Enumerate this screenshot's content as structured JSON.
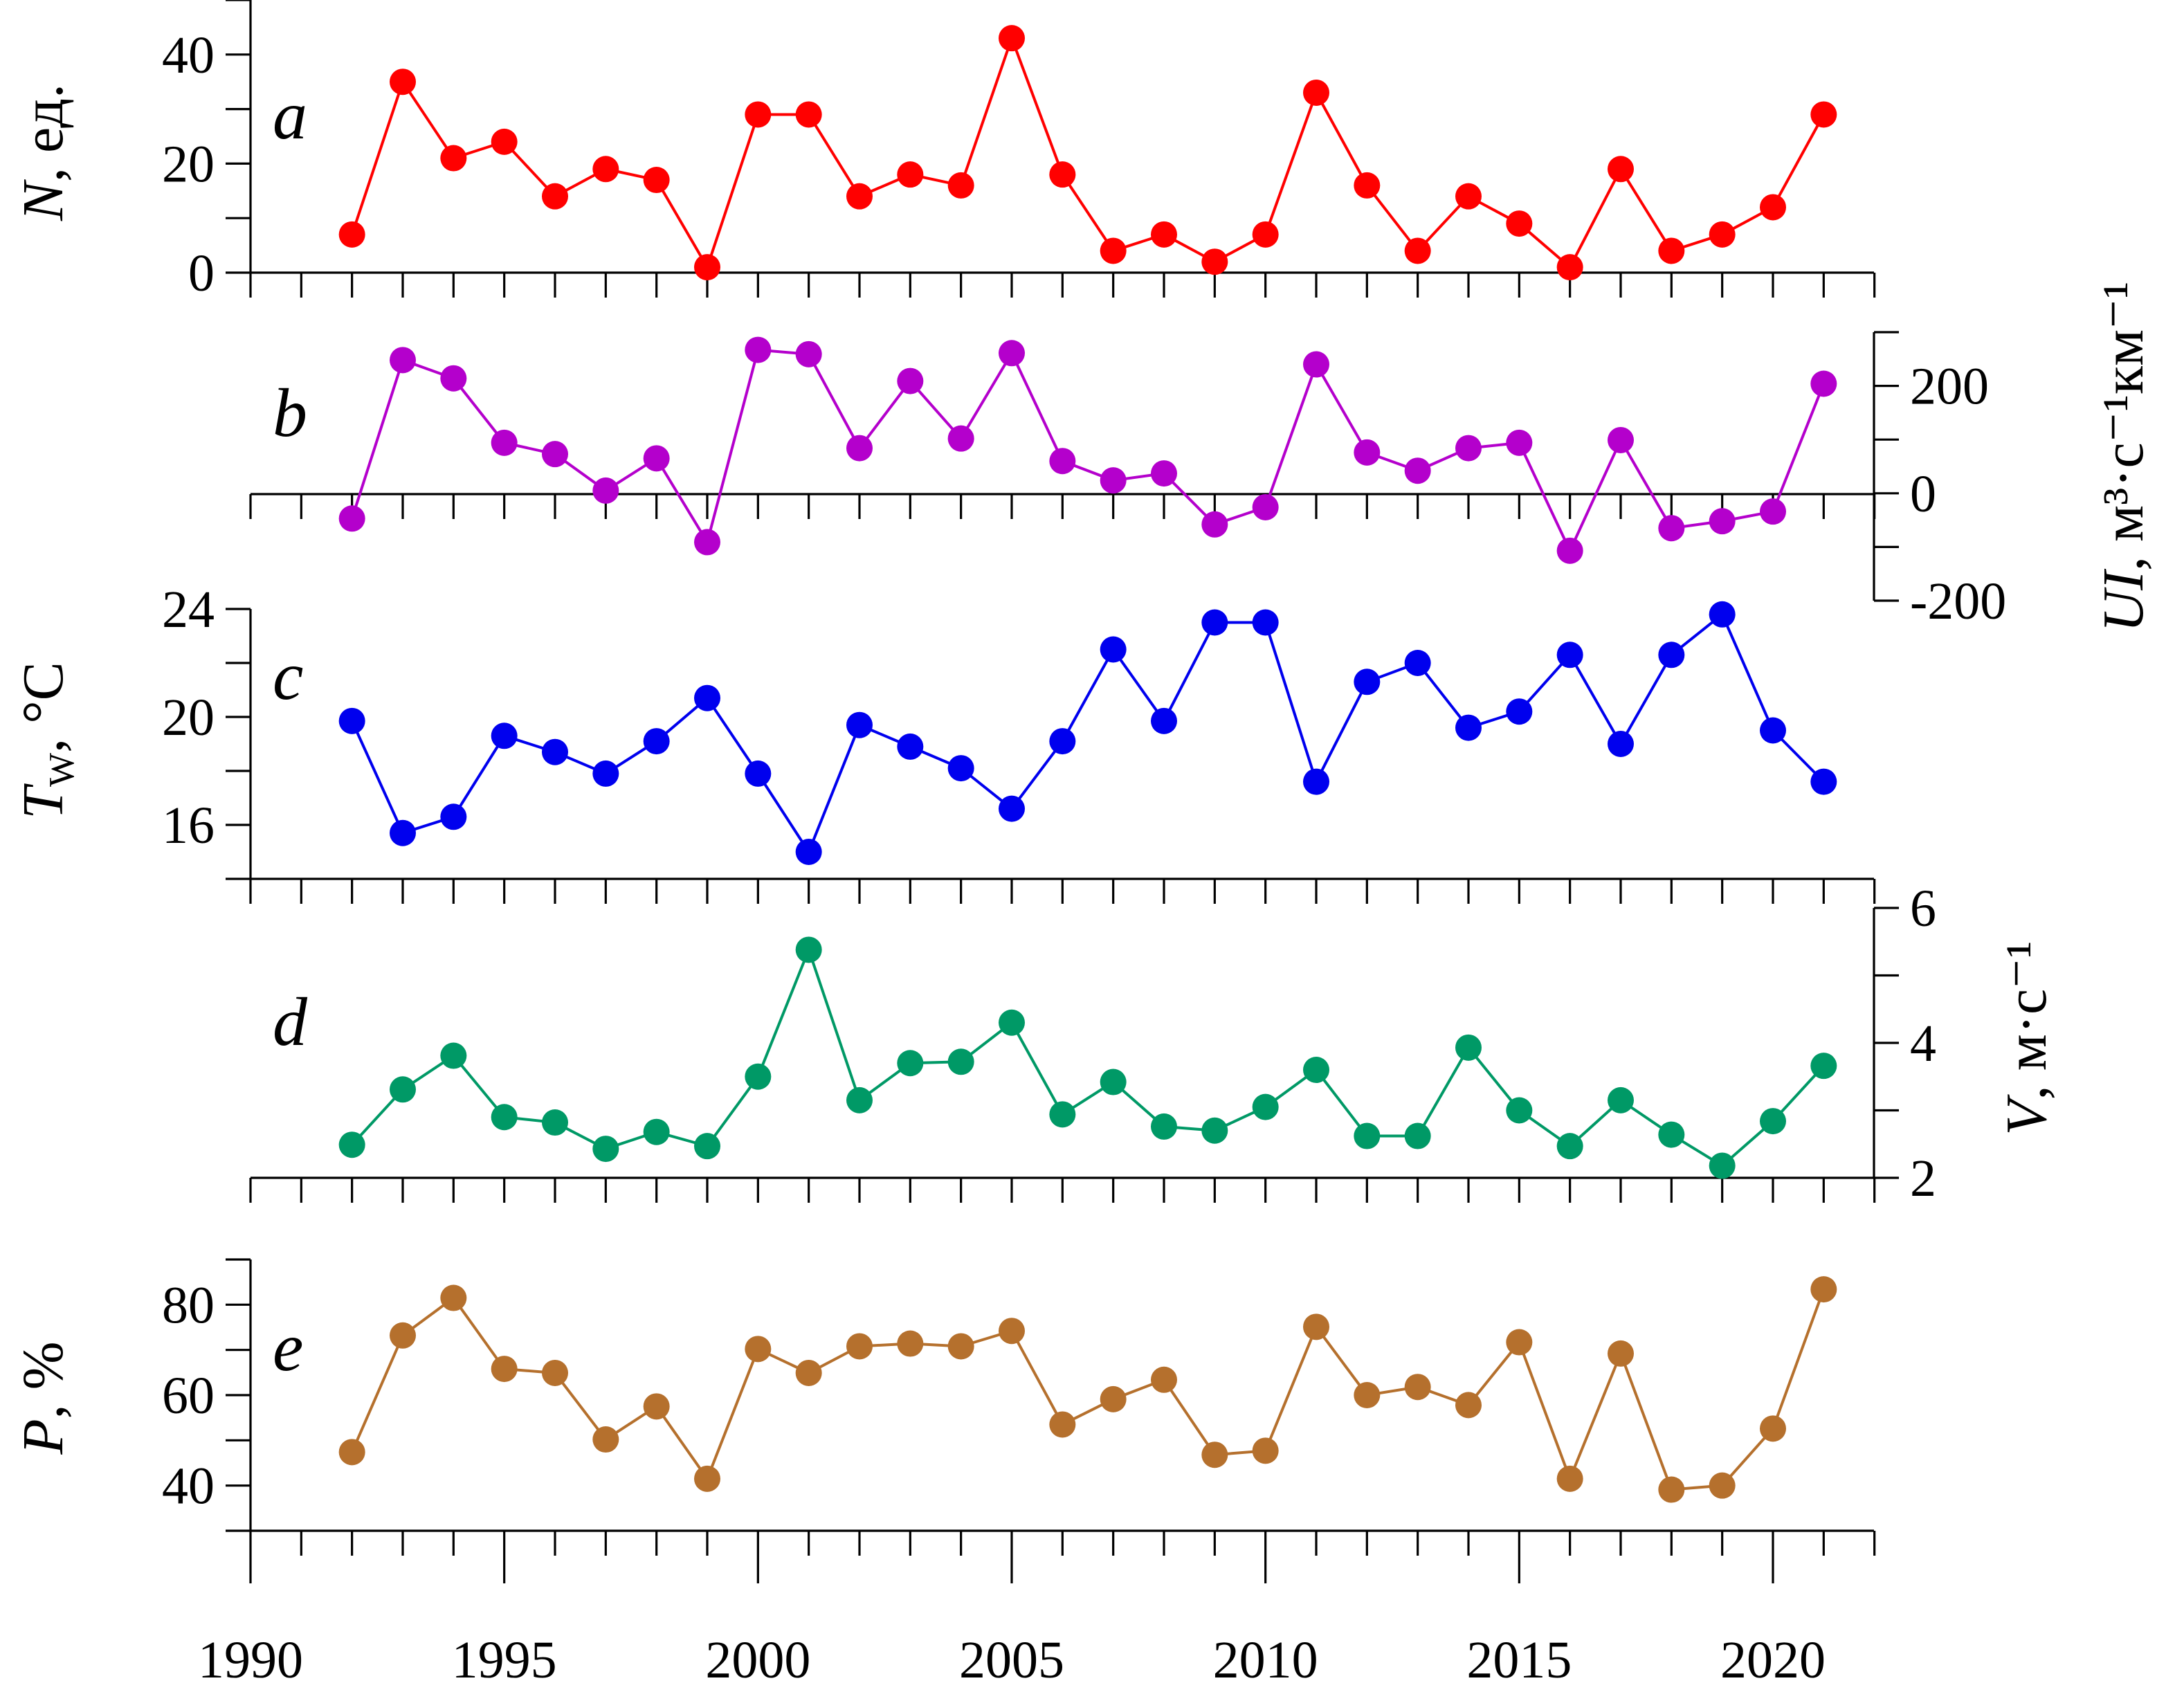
{
  "chart_data": [
    {
      "type": "line",
      "letter": "a",
      "ylabel": {
        "var": "N",
        "sub": "",
        "unit": ", ед."
      },
      "color": "#ff0000",
      "ylim": [
        0,
        50
      ],
      "yticks": [
        0,
        20,
        40
      ],
      "ytick_labels": [
        "0",
        "20",
        "40"
      ],
      "minor_step": 10,
      "axis_side": "left",
      "x": [
        1992,
        1993,
        1994,
        1995,
        1996,
        1997,
        1998,
        1999,
        2000,
        2001,
        2002,
        2003,
        2004,
        2005,
        2006,
        2007,
        2008,
        2009,
        2010,
        2011,
        2012,
        2013,
        2014,
        2015,
        2016,
        2017,
        2018,
        2019,
        2020,
        2021
      ],
      "values": [
        7,
        35,
        21,
        24,
        14,
        19,
        17,
        1,
        29,
        29,
        14,
        18,
        16,
        43,
        18,
        4,
        7,
        2,
        7,
        33,
        16,
        4,
        14,
        9,
        1,
        19,
        4,
        7,
        12,
        29
      ]
    },
    {
      "type": "line",
      "letter": "b",
      "ylabel": {
        "var": "UI",
        "sub": "",
        "unit": ", м³·с⁻¹км⁻¹"
      },
      "color": "#b400cc",
      "ylim": [
        -200,
        300
      ],
      "yticks": [
        -200,
        0,
        200
      ],
      "ytick_labels": [
        "-200",
        "0",
        "200"
      ],
      "minor_step": 100,
      "axis_side": "right",
      "x": [
        1992,
        1993,
        1994,
        1995,
        1996,
        1997,
        1998,
        1999,
        2000,
        2001,
        2002,
        2003,
        2004,
        2005,
        2006,
        2007,
        2008,
        2009,
        2010,
        2011,
        2012,
        2013,
        2014,
        2015,
        2016,
        2017,
        2018,
        2019,
        2020,
        2021
      ],
      "values": [
        -47,
        248,
        214,
        94,
        73,
        5,
        65,
        -91,
        267,
        259,
        84,
        209,
        102,
        261,
        60,
        24,
        37,
        -58,
        -26,
        240,
        76,
        42,
        84,
        94,
        -107,
        99,
        -65,
        -52,
        -34,
        204
      ]
    },
    {
      "type": "line",
      "letter": "c",
      "ylabel": {
        "var": "T",
        "sub": "W",
        "unit": ", °C"
      },
      "color": "#0000ee",
      "ylim": [
        14,
        24
      ],
      "yticks": [
        16,
        20,
        24
      ],
      "ytick_labels": [
        "16",
        "20",
        "24"
      ],
      "minor_step": 2,
      "axis_side": "left",
      "x": [
        1992,
        1993,
        1994,
        1995,
        1996,
        1997,
        1998,
        1999,
        2000,
        2001,
        2002,
        2003,
        2004,
        2005,
        2006,
        2007,
        2008,
        2009,
        2010,
        2011,
        2012,
        2013,
        2014,
        2015,
        2016,
        2017,
        2018,
        2019,
        2020,
        2021
      ],
      "values": [
        19.85,
        15.7,
        16.3,
        19.3,
        18.7,
        17.9,
        19.1,
        20.7,
        17.9,
        15.0,
        19.7,
        18.9,
        18.1,
        16.6,
        19.1,
        22.5,
        19.85,
        23.5,
        23.5,
        17.6,
        21.3,
        22.0,
        19.6,
        20.2,
        22.3,
        19.0,
        22.3,
        23.8,
        19.5,
        17.6
      ]
    },
    {
      "type": "line",
      "letter": "d",
      "ylabel": {
        "var": "V",
        "sub": "",
        "unit": ", м·с⁻¹"
      },
      "color": "#009966",
      "ylim": [
        2,
        6
      ],
      "yticks": [
        2,
        4,
        6
      ],
      "ytick_labels": [
        "2",
        "4",
        "6"
      ],
      "minor_step": 1,
      "axis_side": "right",
      "x": [
        1992,
        1993,
        1994,
        1995,
        1996,
        1997,
        1998,
        1999,
        2000,
        2001,
        2002,
        2003,
        2004,
        2005,
        2006,
        2007,
        2008,
        2009,
        2010,
        2011,
        2012,
        2013,
        2014,
        2015,
        2016,
        2017,
        2018,
        2019,
        2020,
        2021
      ],
      "values": [
        2.49,
        3.31,
        3.81,
        2.9,
        2.82,
        2.43,
        2.68,
        2.47,
        3.5,
        5.38,
        3.15,
        3.7,
        3.72,
        4.3,
        2.94,
        3.42,
        2.76,
        2.7,
        3.05,
        3.6,
        2.62,
        2.62,
        3.93,
        3.0,
        2.47,
        3.15,
        2.64,
        2.18,
        2.84,
        3.66
      ]
    },
    {
      "type": "line",
      "letter": "e",
      "ylabel": {
        "var": "P",
        "sub": "",
        "unit": ", %"
      },
      "color": "#b5702d",
      "ylim": [
        30,
        90
      ],
      "yticks": [
        40,
        60,
        80
      ],
      "ytick_labels": [
        "40",
        "60",
        "80"
      ],
      "minor_step": 10,
      "axis_side": "left",
      "x": [
        1992,
        1993,
        1994,
        1995,
        1996,
        1997,
        1998,
        1999,
        2000,
        2001,
        2002,
        2003,
        2004,
        2005,
        2006,
        2007,
        2008,
        2009,
        2010,
        2011,
        2012,
        2013,
        2014,
        2015,
        2016,
        2017,
        2018,
        2019,
        2020,
        2021
      ],
      "values": [
        47.4,
        73.2,
        81.5,
        65.8,
        64.9,
        50.2,
        57.5,
        41.5,
        70.2,
        64.9,
        70.8,
        71.4,
        70.8,
        74.2,
        53.5,
        59.1,
        63.4,
        46.8,
        47.7,
        75.1,
        60,
        61.8,
        57.8,
        71.7,
        41.5,
        69.2,
        39.1,
        40,
        52.6,
        83.4
      ]
    }
  ],
  "xaxis": {
    "xlim": [
      1990,
      2022
    ],
    "ticks": [
      1990,
      1995,
      2000,
      2005,
      2010,
      2015,
      2020
    ],
    "tick_labels": [
      "1990",
      "1995",
      "2000",
      "2005",
      "2010",
      "2015",
      "2020"
    ]
  }
}
